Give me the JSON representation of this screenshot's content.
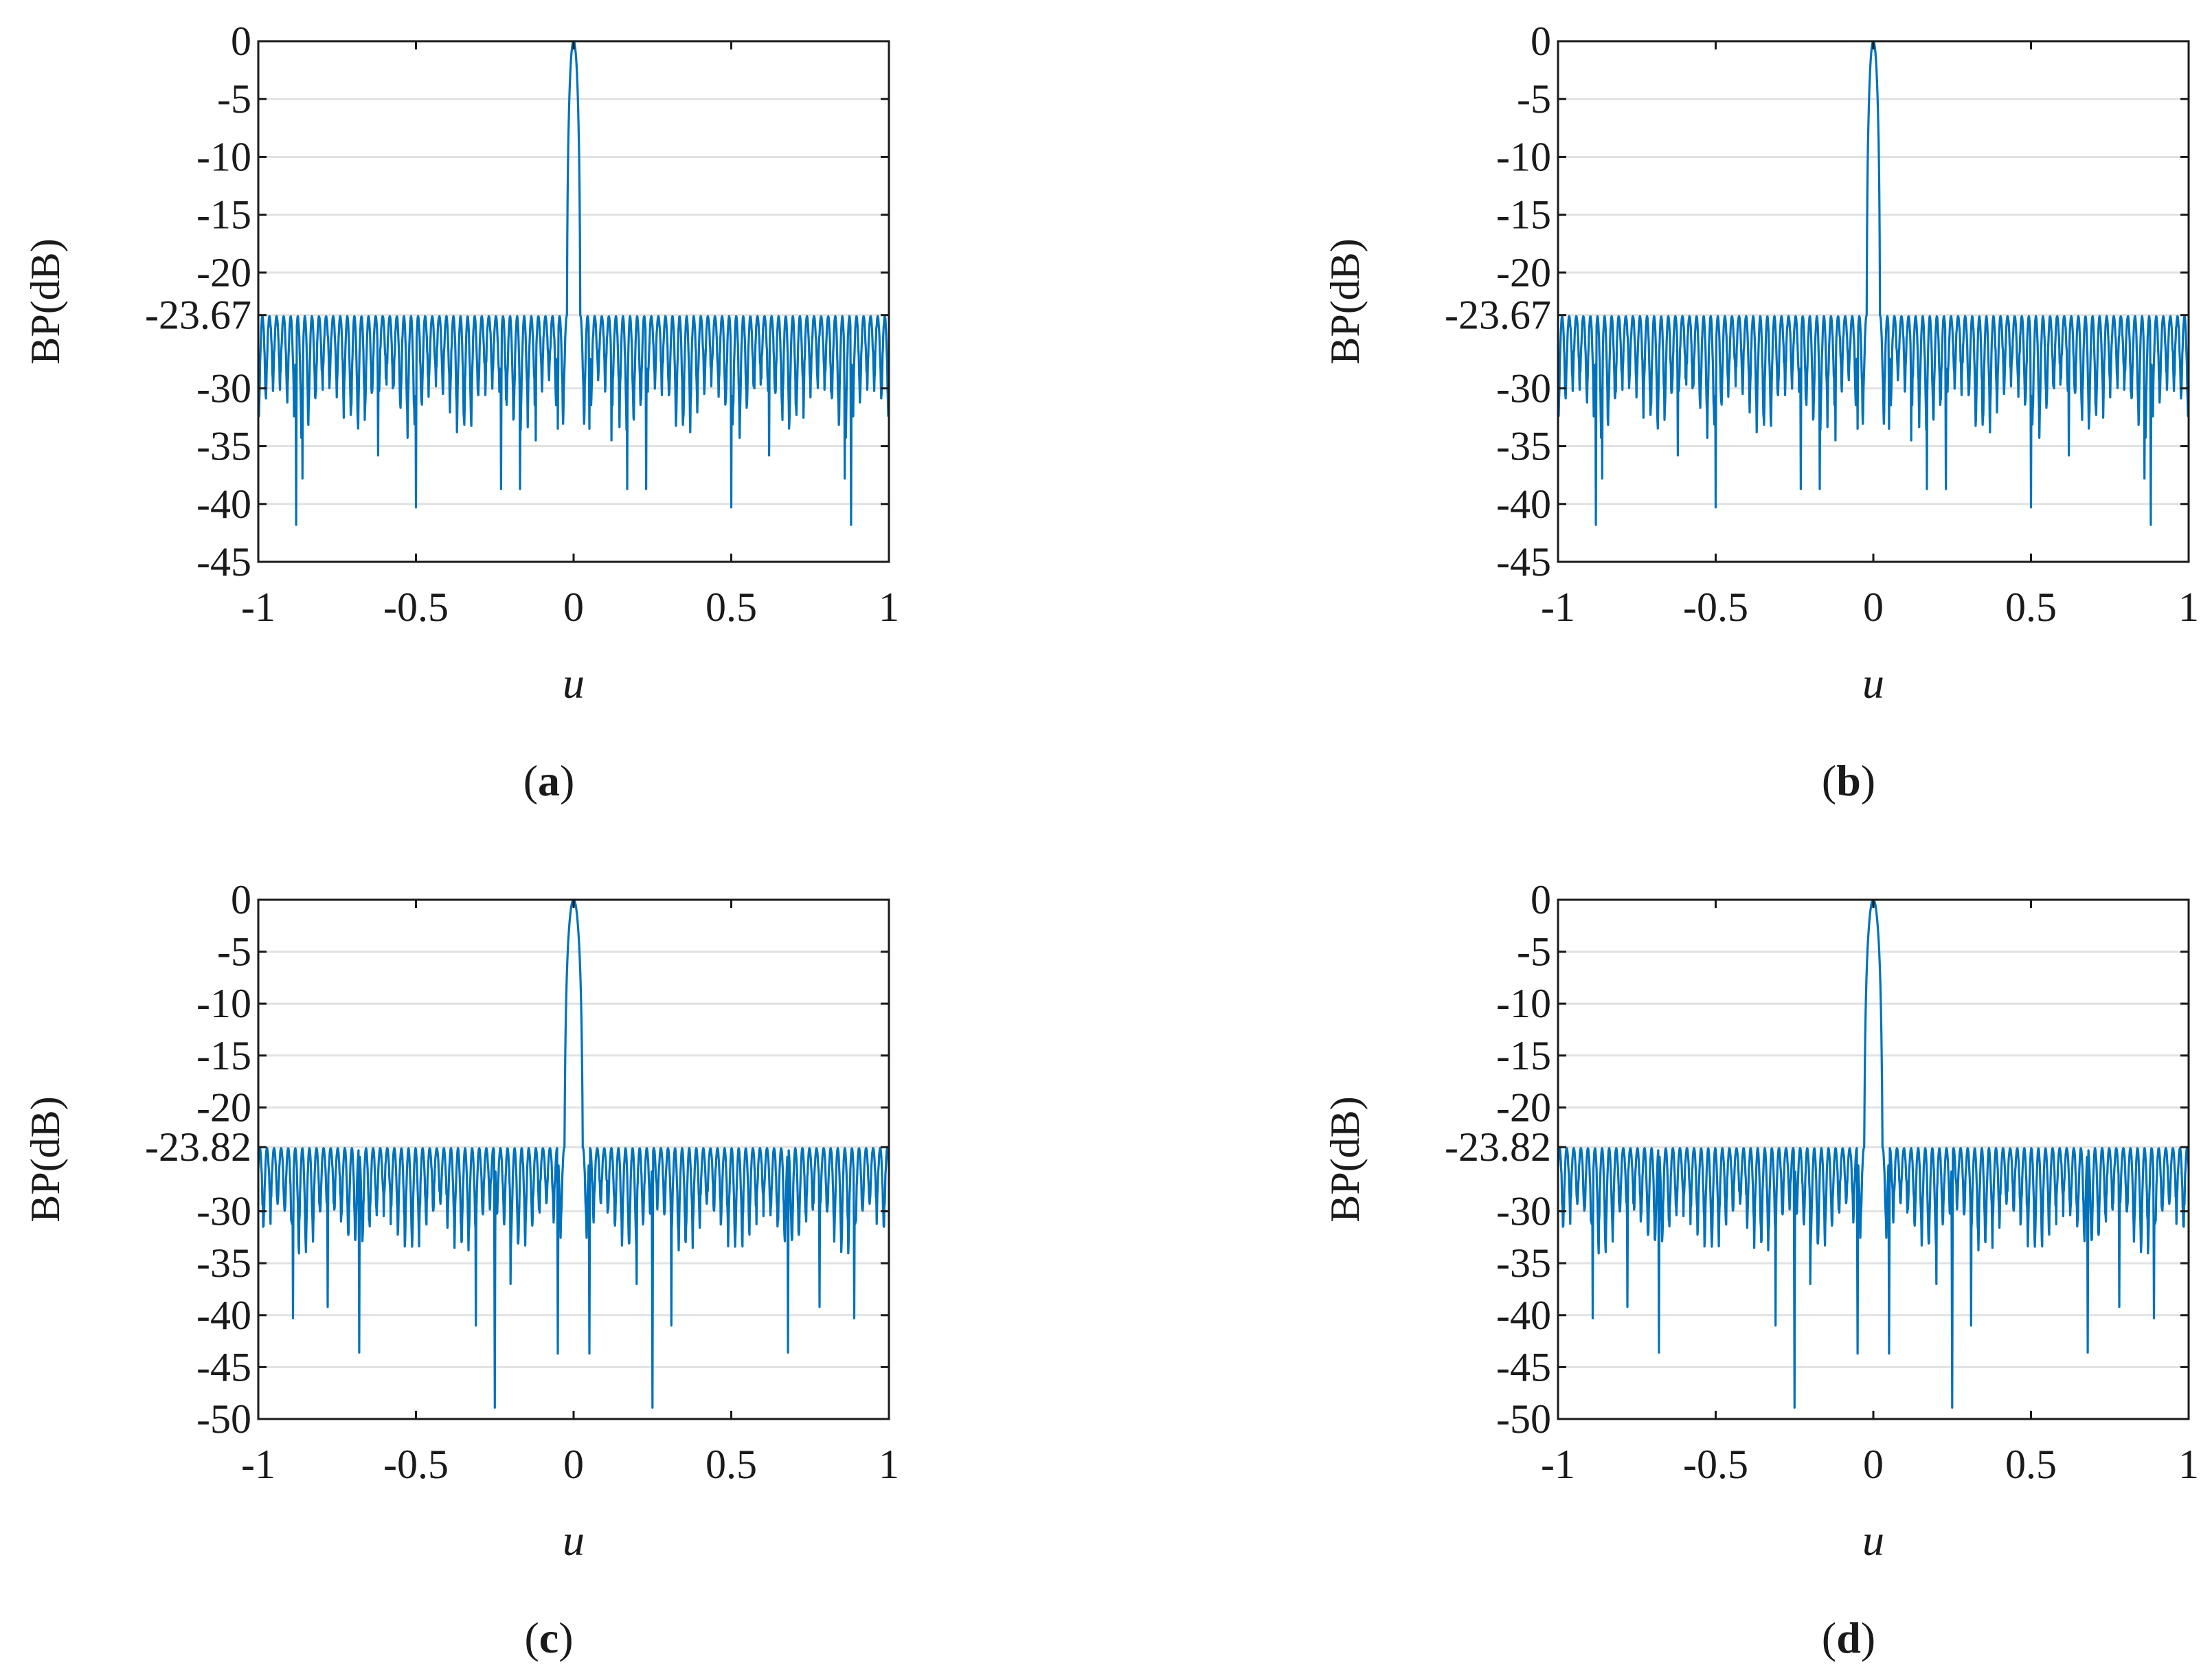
{
  "figure": {
    "description_colors": {
      "line": "#0072BD",
      "grid": "#e2e2e2",
      "axis": "#1a1a1a"
    }
  },
  "chart_data": [
    {
      "type": "line",
      "panel": "a",
      "caption": {
        "open": "(",
        "letter": "a",
        "close": ")"
      },
      "xlabel": "u",
      "ylabel": "BP(dB)",
      "xlim": [
        -1,
        1
      ],
      "ylim": [
        -45,
        0
      ],
      "xticks": [
        -1,
        -0.5,
        0,
        0.5,
        1
      ],
      "xtick_labels": [
        "-1",
        "-0.5",
        "0",
        "0.5",
        "1"
      ],
      "yticks": [
        0,
        -5,
        -10,
        -15,
        -20,
        -23.67,
        -30,
        -35,
        -40,
        -45
      ],
      "ytick_labels": [
        "0",
        "-5",
        "-10",
        "-15",
        "-20",
        "-23.67",
        "-30",
        "-35",
        "-40",
        "-45"
      ],
      "sidelobe_level": -23.67,
      "mainlobe_halfwidth": 0.022,
      "nulls": [
        [
          -0.88,
          -41.8
        ],
        [
          -0.86,
          -37.8
        ],
        [
          -0.62,
          -35.8
        ],
        [
          -0.5,
          -40.3
        ],
        [
          -0.23,
          -38.7
        ],
        [
          -0.17,
          -38.7
        ],
        [
          -0.12,
          -34.5
        ],
        [
          -0.05,
          -33.5
        ],
        [
          0.05,
          -33.5
        ],
        [
          0.12,
          -34.5
        ],
        [
          0.17,
          -38.7
        ],
        [
          0.23,
          -38.7
        ],
        [
          0.5,
          -40.3
        ],
        [
          0.62,
          -35.8
        ],
        [
          0.86,
          -37.8
        ],
        [
          0.88,
          -41.8
        ]
      ],
      "grid": true
    },
    {
      "type": "line",
      "panel": "b",
      "caption": {
        "open": "(",
        "letter": "b",
        "close": ")"
      },
      "xlabel": "u",
      "ylabel": "BP(dB)",
      "xlim": [
        -1,
        1
      ],
      "ylim": [
        -45,
        0
      ],
      "xticks": [
        -1,
        -0.5,
        0,
        0.5,
        1
      ],
      "xtick_labels": [
        "-1",
        "-0.5",
        "0",
        "0.5",
        "1"
      ],
      "yticks": [
        0,
        -5,
        -10,
        -15,
        -20,
        -23.67,
        -30,
        -35,
        -40,
        -45
      ],
      "ytick_labels": [
        "0",
        "-5",
        "-10",
        "-15",
        "-20",
        "-23.67",
        "-30",
        "-35",
        "-40",
        "-45"
      ],
      "sidelobe_level": -23.67,
      "mainlobe_halfwidth": 0.022,
      "nulls": [
        [
          -0.88,
          -41.8
        ],
        [
          -0.86,
          -37.8
        ],
        [
          -0.62,
          -35.8
        ],
        [
          -0.5,
          -40.3
        ],
        [
          -0.23,
          -38.7
        ],
        [
          -0.17,
          -38.7
        ],
        [
          -0.12,
          -34.5
        ],
        [
          -0.05,
          -33.5
        ],
        [
          0.05,
          -33.5
        ],
        [
          0.12,
          -34.5
        ],
        [
          0.17,
          -38.7
        ],
        [
          0.23,
          -38.7
        ],
        [
          0.5,
          -40.3
        ],
        [
          0.62,
          -35.8
        ],
        [
          0.86,
          -37.8
        ],
        [
          0.88,
          -41.8
        ]
      ],
      "grid": true
    },
    {
      "type": "line",
      "panel": "c",
      "caption": {
        "open": "(",
        "letter": "c",
        "close": ")"
      },
      "xlabel": "u",
      "ylabel": "BP(dB)",
      "xlim": [
        -1,
        1
      ],
      "ylim": [
        -50,
        0
      ],
      "xticks": [
        -1,
        -0.5,
        0,
        0.5,
        1
      ],
      "xtick_labels": [
        "-1",
        "-0.5",
        "0",
        "0.5",
        "1"
      ],
      "yticks": [
        0,
        -5,
        -10,
        -15,
        -20,
        -23.82,
        -30,
        -35,
        -40,
        -45,
        -50
      ],
      "ytick_labels": [
        "0",
        "-5",
        "-10",
        "-15",
        "-20",
        "-23.82",
        "-30",
        "-35",
        "-40",
        "-45",
        "-50"
      ],
      "sidelobe_level": -23.82,
      "mainlobe_halfwidth": 0.03,
      "nulls": [
        [
          -0.89,
          -40.3
        ],
        [
          -0.78,
          -39.2
        ],
        [
          -0.68,
          -43.6
        ],
        [
          -0.31,
          -41.0
        ],
        [
          -0.25,
          -48.9
        ],
        [
          -0.2,
          -37.0
        ],
        [
          -0.05,
          -43.7
        ],
        [
          0.05,
          -43.7
        ],
        [
          0.2,
          -37.0
        ],
        [
          0.25,
          -48.9
        ],
        [
          0.31,
          -41.0
        ],
        [
          0.68,
          -43.6
        ],
        [
          0.78,
          -39.2
        ],
        [
          0.89,
          -40.3
        ]
      ],
      "grid": true
    },
    {
      "type": "line",
      "panel": "d",
      "caption": {
        "open": "(",
        "letter": "d",
        "close": ")"
      },
      "xlabel": "u",
      "ylabel": "BP(dB)",
      "xlim": [
        -1,
        1
      ],
      "ylim": [
        -50,
        0
      ],
      "xticks": [
        -1,
        -0.5,
        0,
        0.5,
        1
      ],
      "xtick_labels": [
        "-1",
        "-0.5",
        "0",
        "0.5",
        "1"
      ],
      "yticks": [
        0,
        -5,
        -10,
        -15,
        -20,
        -23.82,
        -30,
        -35,
        -40,
        -45,
        -50
      ],
      "ytick_labels": [
        "0",
        "-5",
        "-10",
        "-15",
        "-20",
        "-23.82",
        "-30",
        "-35",
        "-40",
        "-45",
        "-50"
      ],
      "sidelobe_level": -23.82,
      "mainlobe_halfwidth": 0.03,
      "nulls": [
        [
          -0.89,
          -40.3
        ],
        [
          -0.78,
          -39.2
        ],
        [
          -0.68,
          -43.6
        ],
        [
          -0.31,
          -41.0
        ],
        [
          -0.25,
          -48.9
        ],
        [
          -0.2,
          -37.0
        ],
        [
          -0.05,
          -43.7
        ],
        [
          0.05,
          -43.7
        ],
        [
          0.2,
          -37.0
        ],
        [
          0.25,
          -48.9
        ],
        [
          0.31,
          -41.0
        ],
        [
          0.68,
          -43.6
        ],
        [
          0.78,
          -39.2
        ],
        [
          0.89,
          -40.3
        ]
      ],
      "grid": true
    }
  ]
}
